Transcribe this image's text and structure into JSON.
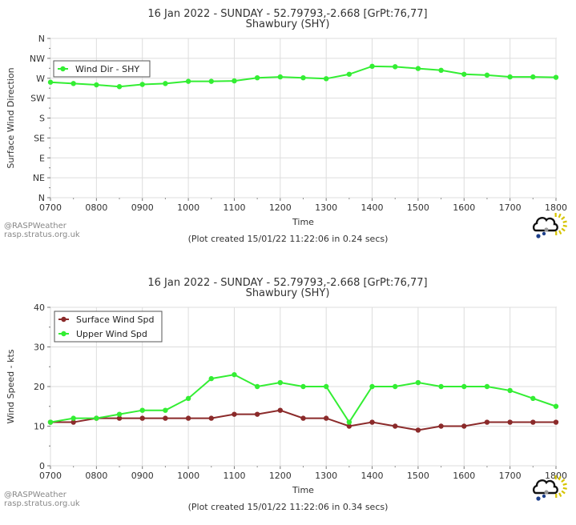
{
  "chart_data": [
    {
      "type": "line",
      "title": "16 Jan 2022 - SUNDAY - 52.79793,-2.668 [GrPt:76,77]",
      "subtitle": "Shawbury (SHY)",
      "xlabel": "Time",
      "ylabel": "Surface Wind Direction",
      "x_ticks": [
        "0700",
        "0800",
        "0900",
        "1000",
        "1100",
        "1200",
        "1300",
        "1400",
        "1500",
        "1600",
        "1700",
        "1800"
      ],
      "y_ticks": [
        "N",
        "NE",
        "E",
        "SE",
        "S",
        "SW",
        "W",
        "NW",
        "N"
      ],
      "ylim": [
        0,
        360
      ],
      "legend_position": "top-left",
      "grid": true,
      "x": [
        "0700",
        "0730",
        "0800",
        "0830",
        "0900",
        "0930",
        "1000",
        "1030",
        "1100",
        "1130",
        "1200",
        "1230",
        "1300",
        "1330",
        "1400",
        "1430",
        "1500",
        "1530",
        "1600",
        "1630",
        "1700",
        "1730",
        "1800"
      ],
      "series": [
        {
          "name": "Wind Dir - SHY",
          "color": "#33ee33",
          "values": [
            261,
            258,
            255,
            251,
            256,
            258,
            263,
            263,
            264,
            271,
            273,
            271,
            269,
            279,
            297,
            296,
            292,
            288,
            279,
            277,
            273,
            273,
            272
          ]
        }
      ],
      "footer": "(Plot created 15/01/22 11:22:06 in 0.24 secs)"
    },
    {
      "type": "line",
      "title": "16 Jan 2022 - SUNDAY - 52.79793,-2.668 [GrPt:76,77]",
      "subtitle": "Shawbury (SHY)",
      "xlabel": "Time",
      "ylabel": "Wind Speed - kts",
      "x_ticks": [
        "0700",
        "0800",
        "0900",
        "1000",
        "1100",
        "1200",
        "1300",
        "1400",
        "1500",
        "1600",
        "1700",
        "1800"
      ],
      "y_ticks": [
        "0",
        "10",
        "20",
        "30",
        "40"
      ],
      "ylim": [
        0,
        40
      ],
      "legend_position": "top-left",
      "grid": true,
      "x": [
        "0700",
        "0730",
        "0800",
        "0830",
        "0900",
        "0930",
        "1000",
        "1030",
        "1100",
        "1130",
        "1200",
        "1230",
        "1300",
        "1330",
        "1400",
        "1430",
        "1500",
        "1530",
        "1600",
        "1630",
        "1700",
        "1730",
        "1800"
      ],
      "series": [
        {
          "name": "Surface Wind Spd",
          "color": "#8b2a2a",
          "values": [
            11,
            11,
            12,
            12,
            12,
            12,
            12,
            12,
            13,
            13,
            14,
            12,
            12,
            10,
            11,
            10,
            9,
            10,
            10,
            11,
            11,
            11,
            11
          ]
        },
        {
          "name": "Upper Wind Spd",
          "color": "#33ee33",
          "values": [
            11,
            12,
            12,
            13,
            14,
            14,
            17,
            22,
            23,
            20,
            21,
            20,
            20,
            11,
            20,
            20,
            21,
            20,
            20,
            20,
            19,
            17,
            15
          ]
        }
      ],
      "footer": "(Plot created 15/01/22 11:22:06 in 0.34 secs)"
    }
  ],
  "credit": {
    "line1": "@RASPWeather",
    "line2": "rasp.stratus.org.uk"
  },
  "logo_icon": "cloud-rain-sun-icon"
}
